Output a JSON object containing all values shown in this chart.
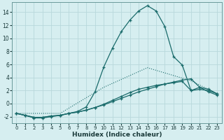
{
  "xlabel": "Humidex (Indice chaleur)",
  "bg_color": "#d6eef0",
  "grid_color": "#b8d8db",
  "line_color": "#1a6b6b",
  "xlim": [
    -0.5,
    23.5
  ],
  "ylim": [
    -3,
    15.5
  ],
  "xticks": [
    0,
    1,
    2,
    3,
    4,
    5,
    6,
    7,
    8,
    9,
    10,
    11,
    12,
    13,
    14,
    15,
    16,
    17,
    18,
    19,
    20,
    21,
    22,
    23
  ],
  "yticks": [
    -2,
    0,
    2,
    4,
    6,
    8,
    10,
    12,
    14
  ],
  "line1_x": [
    0,
    1,
    2,
    3,
    4,
    5,
    6,
    7,
    8,
    9,
    10,
    11,
    12,
    13,
    14,
    15,
    16,
    17,
    18,
    19,
    20,
    21,
    22,
    23
  ],
  "line1_y": [
    -1.5,
    -1.8,
    -2.2,
    -2.2,
    -2.0,
    -1.8,
    -1.5,
    -1.2,
    -0.5,
    1.8,
    5.6,
    8.5,
    11.0,
    12.8,
    14.2,
    15.0,
    14.2,
    11.8,
    7.2,
    5.9,
    2.0,
    2.5,
    1.8,
    1.3
  ],
  "line2_x": [
    0,
    1,
    2,
    3,
    4,
    5,
    6,
    7,
    8,
    9,
    10,
    11,
    12,
    13,
    14,
    15,
    16,
    17,
    18,
    19,
    20,
    21,
    22,
    23
  ],
  "line2_y": [
    -1.5,
    -1.8,
    -2.1,
    -2.1,
    -1.9,
    -1.8,
    -1.5,
    -1.3,
    -1.0,
    -0.6,
    -0.2,
    0.3,
    0.8,
    1.3,
    1.8,
    2.2,
    2.6,
    3.0,
    3.3,
    3.6,
    3.8,
    2.5,
    2.2,
    1.5
  ],
  "line3_x": [
    0,
    1,
    2,
    3,
    4,
    5,
    6,
    7,
    8,
    9,
    10,
    11,
    12,
    13,
    14,
    15,
    16,
    17,
    18,
    19,
    20,
    21,
    22,
    23
  ],
  "line3_y": [
    -1.5,
    -1.8,
    -2.1,
    -2.1,
    -1.9,
    -1.8,
    -1.5,
    -1.3,
    -1.0,
    -0.6,
    -0.1,
    0.5,
    1.1,
    1.7,
    2.2,
    2.5,
    2.8,
    3.0,
    3.2,
    3.4,
    2.0,
    2.2,
    2.0,
    1.5
  ],
  "line_dotted_x": [
    0,
    5,
    10,
    15,
    20,
    23
  ],
  "line_dotted_y": [
    -1.5,
    -1.5,
    2.5,
    5.5,
    3.5,
    1.5
  ]
}
